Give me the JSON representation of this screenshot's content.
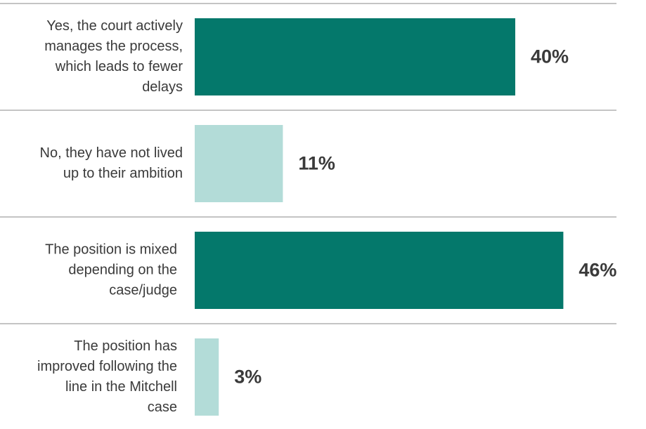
{
  "chart_data": {
    "type": "bar",
    "orientation": "horizontal",
    "categories": [
      "Yes, the court actively manages the process, which leads to fewer delays",
      "No, they have not lived up to their ambition",
      "The position is mixed depending on the case/judge",
      "The position has improved following the line in the Mitchell case"
    ],
    "values": [
      40,
      11,
      46,
      3
    ],
    "value_labels": [
      "40%",
      "11%",
      "46%",
      "3%"
    ],
    "colors": [
      "#04786b",
      "#b3dcd8",
      "#04786b",
      "#b3dcd8"
    ]
  }
}
